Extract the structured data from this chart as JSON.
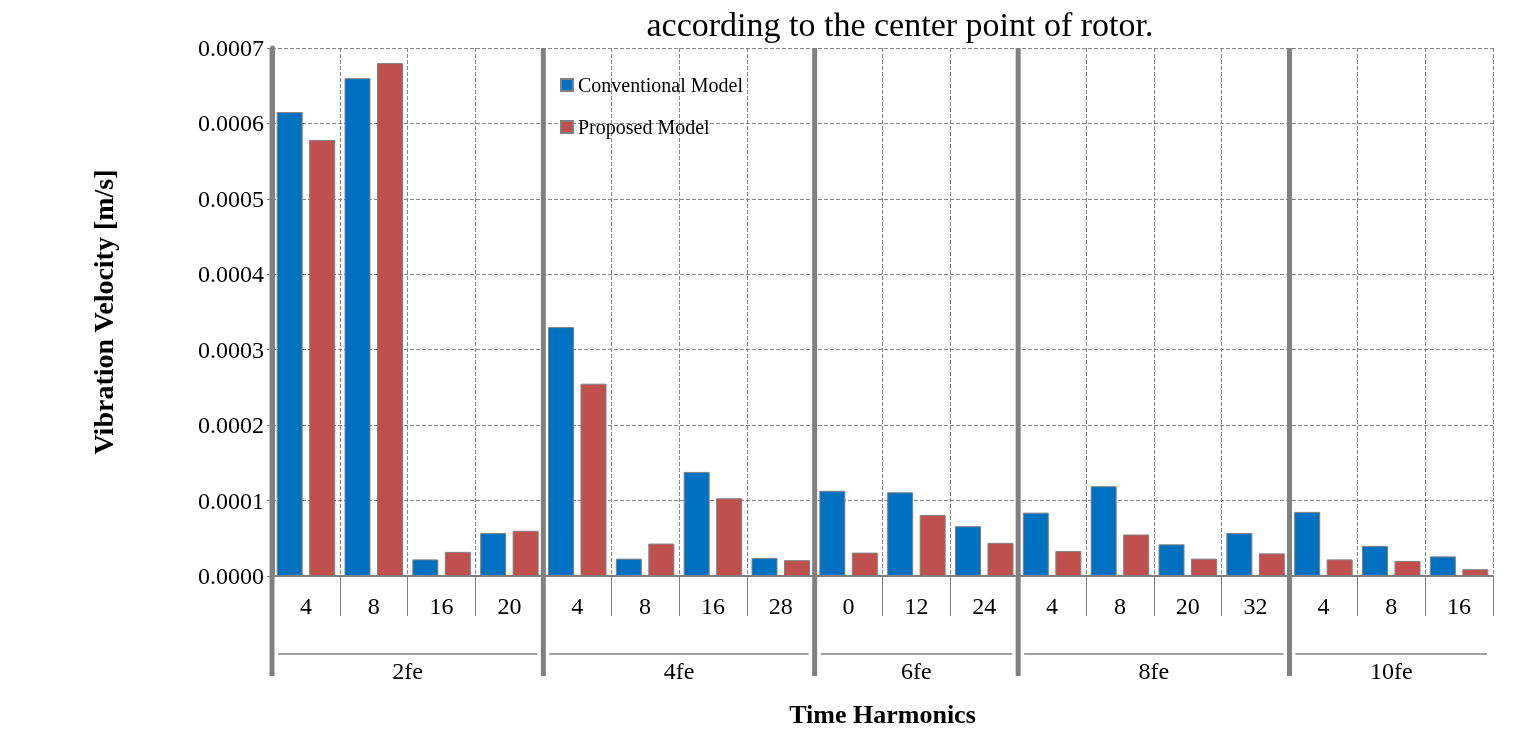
{
  "chart_data": {
    "type": "bar",
    "title": "according to the center point of rotor.",
    "xlabel": "Time Harmonics",
    "ylabel": "Vibration Velocity [m/s]",
    "categories": [
      "4",
      "8",
      "16",
      "20",
      "4",
      "8",
      "16",
      "28",
      "0",
      "12",
      "24",
      "4",
      "8",
      "20",
      "32",
      "4",
      "8",
      "16"
    ],
    "series": [
      {
        "name": "Conventional Model",
        "color": "#0070c0",
        "values": [
          0.000615,
          0.00066,
          2.2e-05,
          5.7e-05,
          0.00033,
          2.3e-05,
          0.000138,
          2.4e-05,
          0.000113,
          0.000111,
          6.6e-05,
          8.4e-05,
          0.000119,
          4.2e-05,
          5.7e-05,
          8.5e-05,
          4e-05,
          2.6e-05
        ]
      },
      {
        "name": "Proposed Model",
        "color": "#c0504d",
        "values": [
          0.000578,
          0.00068,
          3.2e-05,
          6e-05,
          0.000255,
          4.3e-05,
          0.000103,
          2.1e-05,
          3.1e-05,
          8.1e-05,
          4.4e-05,
          3.3e-05,
          5.5e-05,
          2.3e-05,
          3e-05,
          2.2e-05,
          2e-05,
          9e-06
        ]
      }
    ],
    "annotations": [
      "2fe",
      "4fe",
      "6fe",
      "8fe",
      "10fe"
    ],
    "ylim": [
      0,
      0.0007
    ],
    "yticks": [
      {
        "value": 0,
        "label": "0.0000"
      },
      {
        "value": 0.0001,
        "label": "0.0001"
      },
      {
        "value": 0.0002,
        "label": "0.0002"
      },
      {
        "value": 0.0003,
        "label": "0.0003"
      },
      {
        "value": 0.0004,
        "label": "0.0004"
      },
      {
        "value": 0.0005,
        "label": "0.0005"
      },
      {
        "value": 0.0006,
        "label": "0.0006"
      },
      {
        "value": 0.0007,
        "label": "0.0007"
      }
    ],
    "grid": true,
    "legend": "top"
  }
}
